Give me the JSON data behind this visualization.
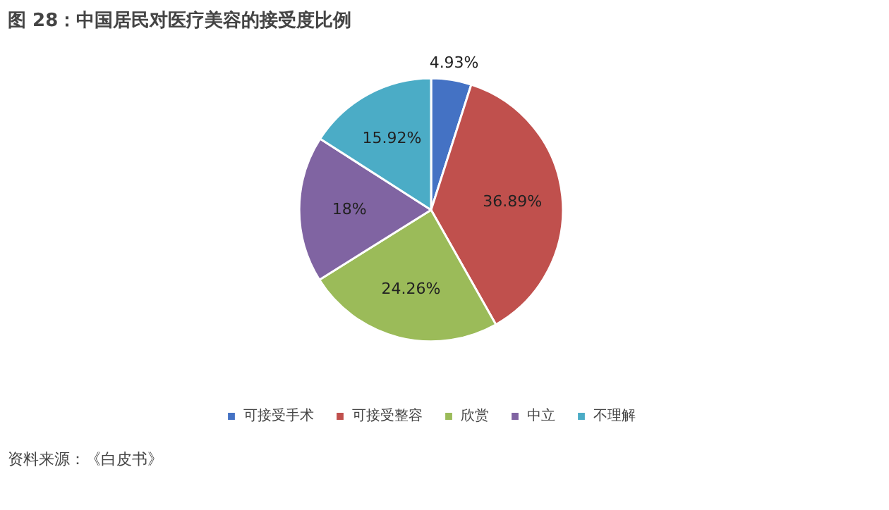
{
  "chart_data": {
    "type": "pie",
    "title": "图 28：中国居民对医疗美容的接受度比例",
    "categories": [
      "可接受手术",
      "可接受整容",
      "欣赏",
      "中立",
      "不理解"
    ],
    "values": [
      4.93,
      36.89,
      24.26,
      18,
      15.92
    ],
    "colors": [
      "#4472c4",
      "#c0504d",
      "#9bbb59",
      "#8064a2",
      "#4bacc6"
    ],
    "value_labels": [
      "4.93%",
      "36.89%",
      "24.26%",
      "18%",
      "15.92%"
    ],
    "legend": "bottom",
    "annotations": [
      "资料来源：《白皮书》"
    ]
  }
}
